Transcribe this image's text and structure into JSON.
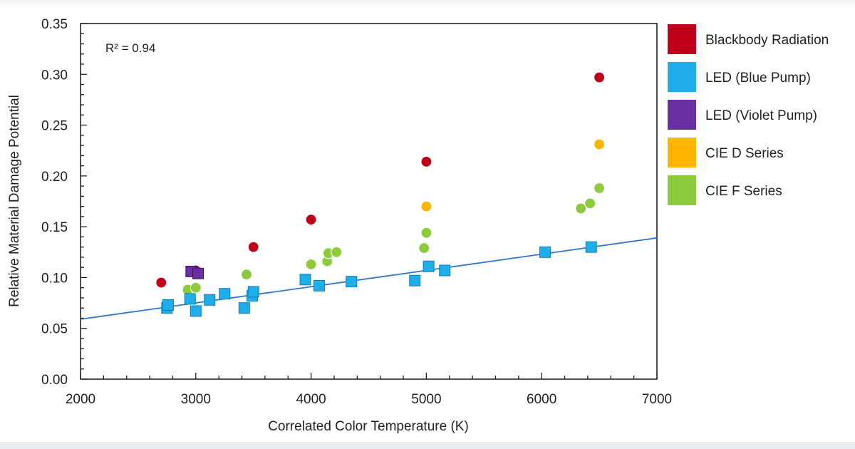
{
  "chart_data": {
    "type": "scatter",
    "title": "",
    "xlabel": "Correlated Color Temperature (K)",
    "ylabel": "Relative Material Damage Potential",
    "xlim": [
      2000,
      7000
    ],
    "ylim": [
      0,
      0.35
    ],
    "xticks": [
      2000,
      3000,
      4000,
      5000,
      6000,
      7000
    ],
    "yticks": [
      0.0,
      0.05,
      0.1,
      0.15,
      0.2,
      0.25,
      0.3,
      0.35
    ],
    "xtick_labels": [
      "2000",
      "3000",
      "4000",
      "5000",
      "6000",
      "7000"
    ],
    "ytick_labels": [
      "0.00",
      "0.05",
      "0.10",
      "0.15",
      "0.20",
      "0.25",
      "0.30",
      "0.35"
    ],
    "grid": false,
    "legend_position": "right",
    "annotation": "R² = 0.94",
    "trendline": {
      "x": [
        2000,
        7000
      ],
      "y": [
        0.059,
        0.139
      ],
      "color": "#2e73d6"
    },
    "series": [
      {
        "name": "Blackbody Radiation",
        "marker": "circle",
        "color": "#c0001a",
        "points": [
          [
            2700,
            0.095
          ],
          [
            3000,
            0.107
          ],
          [
            3500,
            0.13
          ],
          [
            4000,
            0.157
          ],
          [
            5000,
            0.214
          ],
          [
            6500,
            0.297
          ]
        ]
      },
      {
        "name": "LED (Blue Pump)",
        "marker": "square",
        "color": "#1faee9",
        "points": [
          [
            2750,
            0.07
          ],
          [
            2760,
            0.073
          ],
          [
            2950,
            0.079
          ],
          [
            3000,
            0.067
          ],
          [
            3120,
            0.078
          ],
          [
            3250,
            0.084
          ],
          [
            3420,
            0.07
          ],
          [
            3490,
            0.082
          ],
          [
            3500,
            0.086
          ],
          [
            3950,
            0.098
          ],
          [
            4070,
            0.092
          ],
          [
            4350,
            0.096
          ],
          [
            4900,
            0.097
          ],
          [
            5020,
            0.111
          ],
          [
            5160,
            0.107
          ],
          [
            6030,
            0.125
          ],
          [
            6430,
            0.13
          ]
        ]
      },
      {
        "name": "LED (Violet Pump)",
        "marker": "square",
        "color": "#6a2fa0",
        "points": [
          [
            2960,
            0.106
          ],
          [
            3020,
            0.104
          ]
        ]
      },
      {
        "name": "CIE D Series",
        "marker": "circle",
        "color": "#ffb400",
        "points": [
          [
            5000,
            0.17
          ],
          [
            6500,
            0.231
          ]
        ]
      },
      {
        "name": "CIE F Series",
        "marker": "circle",
        "color": "#8ccc3c",
        "points": [
          [
            2930,
            0.088
          ],
          [
            3000,
            0.09
          ],
          [
            3440,
            0.103
          ],
          [
            4000,
            0.113
          ],
          [
            4140,
            0.116
          ],
          [
            4150,
            0.124
          ],
          [
            4220,
            0.125
          ],
          [
            4980,
            0.129
          ],
          [
            5000,
            0.144
          ],
          [
            6340,
            0.168
          ],
          [
            6420,
            0.173
          ],
          [
            6500,
            0.188
          ]
        ]
      }
    ]
  }
}
